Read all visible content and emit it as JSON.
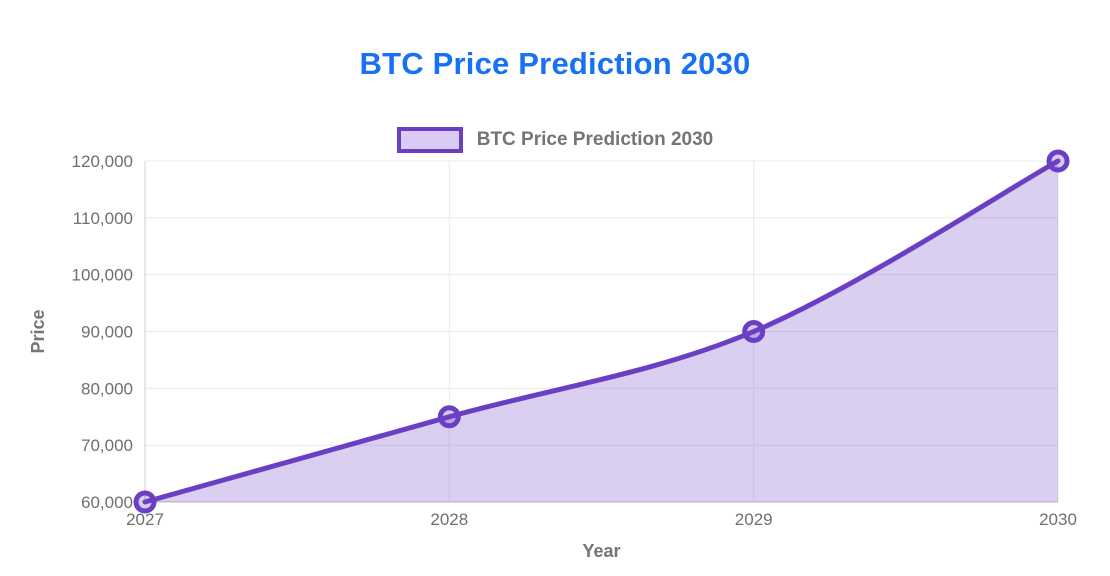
{
  "page": {
    "title": "BTC Price Prediction 2030"
  },
  "legend": {
    "label": "BTC Price Prediction 2030"
  },
  "chart_data": {
    "type": "area",
    "title": "BTC Price Prediction 2030",
    "xlabel": "Year",
    "ylabel": "Price",
    "categories": [
      "2027",
      "2028",
      "2029",
      "2030"
    ],
    "values": [
      60000,
      75000,
      90000,
      120000
    ],
    "ylim": [
      60000,
      120000
    ],
    "ytick_step": 10000,
    "ytick_labels": [
      "60,000",
      "70,000",
      "80,000",
      "90,000",
      "100,000",
      "110,000",
      "120,000"
    ],
    "grid": true,
    "curve": "smooth",
    "marker": "circle",
    "legend_position": "top",
    "colors": {
      "title": "#1771F2",
      "line": "#6B3FC4",
      "area_fill": "rgba(107,63,196,0.25)",
      "marker_fill": "rgba(107,63,196,0.28)",
      "legend_fill": "#D9CBF1",
      "legend_text": "#757575",
      "axis_title_text": "#757575",
      "tick_text": "#6F6F6F",
      "gridline": "#E9E9E9",
      "axis_line": "#CFCFCF",
      "baseline": "#DEDEDE"
    }
  }
}
